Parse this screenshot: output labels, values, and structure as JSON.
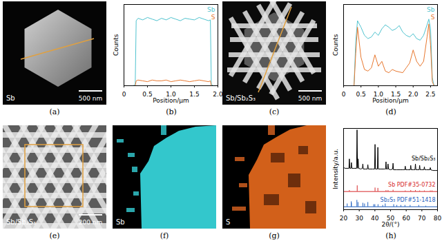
{
  "images": [
    {
      "caption": "(a)",
      "label": "Sb",
      "scale_bar": "500 nm"
    },
    {
      "caption": "(c)",
      "label": "Sb/Sb₂S₃",
      "scale_bar": "500 nm"
    },
    {
      "caption": "(e)",
      "label": "Sb/Sb₂S₃",
      "scale_bar": "200 nm"
    },
    {
      "caption": "(f)",
      "label": "Sb"
    },
    {
      "caption": "(g)",
      "label": "S"
    }
  ],
  "chart_data": [
    {
      "caption": "(b)",
      "type": "line",
      "xlabel": "Position/μm",
      "ylabel": "Counts",
      "xlim": [
        0,
        2
      ],
      "xticks": [
        0,
        0.5,
        {
          "value": 1,
          "label": "1.0"
        },
        1.5,
        {
          "value": 2,
          "label": "2.0"
        }
      ],
      "ylim": [
        0,
        100
      ],
      "tick_labels": "x",
      "legend": "top-right",
      "x": [
        0,
        0.1,
        0.2,
        0.24,
        0.26,
        0.3,
        0.4,
        0.5,
        0.6,
        0.7,
        0.8,
        0.9,
        1.0,
        1.1,
        1.2,
        1.3,
        1.4,
        1.5,
        1.6,
        1.7,
        1.8,
        1.84,
        1.86,
        1.9,
        2.0
      ],
      "series": [
        {
          "name": "Sb",
          "color": "#4fc3cf",
          "values": [
            0,
            0,
            0,
            2,
            80,
            83,
            81,
            84,
            82,
            80,
            83,
            81,
            84,
            82,
            80,
            83,
            82,
            81,
            84,
            82,
            80,
            81,
            2,
            0,
            0
          ]
        },
        {
          "name": "S",
          "color": "#e8772e",
          "values": [
            0,
            0,
            0,
            0,
            6,
            7,
            6,
            5,
            7,
            6,
            6,
            7,
            5,
            6,
            7,
            6,
            5,
            6,
            7,
            6,
            5,
            6,
            0,
            0,
            0
          ]
        }
      ]
    },
    {
      "caption": "(d)",
      "type": "line",
      "xlabel": "Position/μm",
      "ylabel": "Counts",
      "xlim": [
        0,
        2.7
      ],
      "xticks": [
        0,
        0.5,
        {
          "value": 1,
          "label": "1.0"
        },
        1.5,
        {
          "value": 2,
          "label": "2.0"
        },
        2.5
      ],
      "ylim": [
        0,
        100
      ],
      "tick_labels": "x",
      "legend": "top-right",
      "x": [
        0,
        0.1,
        0.2,
        0.3,
        0.35,
        0.4,
        0.5,
        0.6,
        0.7,
        0.8,
        0.9,
        1.0,
        1.1,
        1.2,
        1.3,
        1.4,
        1.5,
        1.6,
        1.7,
        1.8,
        1.9,
        2.0,
        2.1,
        2.2,
        2.3,
        2.4,
        2.45,
        2.5,
        2.55,
        2.6,
        2.7
      ],
      "series": [
        {
          "name": "Sb",
          "color": "#4fc3cf",
          "values": [
            0,
            0,
            0,
            0,
            55,
            80,
            72,
            62,
            58,
            60,
            66,
            62,
            70,
            75,
            72,
            68,
            70,
            74,
            66,
            62,
            60,
            64,
            58,
            56,
            62,
            75,
            82,
            70,
            10,
            0,
            0
          ]
        },
        {
          "name": "S",
          "color": "#e8772e",
          "values": [
            0,
            0,
            0,
            0,
            40,
            72,
            35,
            20,
            18,
            22,
            38,
            24,
            30,
            18,
            16,
            20,
            18,
            17,
            16,
            22,
            28,
            44,
            30,
            24,
            30,
            60,
            76,
            50,
            5,
            0,
            0
          ]
        }
      ]
    },
    {
      "caption": "(h)",
      "type": "line",
      "xlabel": "2θ/(°)",
      "ylabel": "Intensity/a.u.",
      "xlim": [
        20,
        80
      ],
      "xticks": [
        20,
        30,
        40,
        50,
        60,
        70,
        80
      ],
      "ylim": [
        0,
        112
      ],
      "tick_labels": "x",
      "series": [
        {
          "name": "Sb/Sb₂S₃",
          "color": "#000000",
          "type": "line",
          "x": [
            20,
            21,
            22,
            23.4,
            23.7,
            24,
            24.7,
            25,
            25.3,
            26.5,
            28.3,
            28.6,
            28.9,
            29,
            29.3,
            29.6,
            31,
            32,
            32.3,
            32.6,
            34,
            35.2,
            35.5,
            35.8,
            37,
            38.5,
            39.8,
            40.1,
            40.4,
            41.6,
            41.9,
            42.2,
            44,
            46,
            46.8,
            47.1,
            47.4,
            48.1,
            48.4,
            48.7,
            50,
            51.3,
            51.6,
            51.9,
            54,
            56,
            58,
            59.1,
            59.4,
            59.7,
            61,
            62.6,
            62.9,
            63.2,
            64.5,
            65.6,
            65.9,
            66.2,
            67,
            68.3,
            68.6,
            68.9,
            70,
            71.3,
            71.6,
            71.9,
            73,
            75.1,
            75.4,
            75.7,
            77,
            78.5,
            80
          ],
          "values": [
            58,
            57,
            57,
            57,
            70,
            57,
            57,
            65,
            57,
            57,
            57,
            110,
            58,
            57,
            70,
            57,
            56,
            57,
            63,
            56,
            56,
            56,
            62,
            56,
            56,
            56,
            56,
            90,
            56,
            56,
            86,
            56,
            56,
            56,
            56,
            66,
            56,
            56,
            63,
            56,
            55,
            56,
            64,
            55,
            55,
            55,
            55,
            55,
            60,
            55,
            55,
            55,
            61,
            55,
            55,
            55,
            63,
            55,
            55,
            55,
            61,
            55,
            55,
            55,
            59,
            55,
            55,
            55,
            58,
            55,
            54,
            54,
            54
          ]
        },
        {
          "name": "Sb PDF#35-0732",
          "color": "#d62728",
          "type": "stick",
          "base": 25,
          "x": [
            23.7,
            28.7,
            40.1,
            41.9,
            47.1,
            48.4,
            51.6,
            59.4,
            62.9,
            65.9,
            68.6,
            71.6,
            75.4,
            76.5
          ],
          "values": [
            26.5,
            33,
            30,
            29.5,
            26.5,
            26.5,
            27,
            26,
            26.5,
            26.5,
            26,
            26,
            26,
            26
          ]
        },
        {
          "name": "Sb₂S₃ PDF#51-1418",
          "color": "#1f5fbf",
          "type": "stick",
          "base": 4,
          "x": [
            22.3,
            24.9,
            25.0,
            28.5,
            29.2,
            32.3,
            33.4,
            35.5,
            39.2,
            40.0,
            42.0,
            45.0,
            46.6,
            52.0,
            54.0,
            56.6,
            59.2,
            62.5,
            68.0,
            72.5
          ],
          "values": [
            8,
            11,
            9,
            13,
            10,
            9,
            8,
            10,
            7,
            7,
            7,
            6,
            8,
            7,
            6,
            6,
            6,
            6,
            6,
            5
          ]
        }
      ]
    }
  ]
}
